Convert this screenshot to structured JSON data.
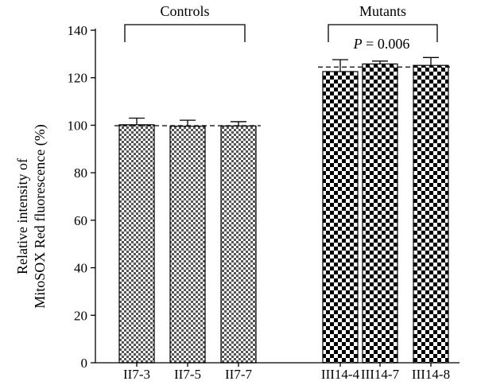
{
  "chart_data": {
    "type": "bar",
    "categories": [
      "II7-3",
      "II7-5",
      "II7-7",
      "III14-4",
      "III14-7",
      "III14-8"
    ],
    "values": [
      100.2,
      99.6,
      99.7,
      122.6,
      125.8,
      125.2
    ],
    "errors": [
      2.8,
      2.5,
      1.8,
      5.0,
      1.2,
      3.3
    ],
    "ylabel_lines": [
      "Relative intensity of",
      "MitoSOX Red fluorescence (%)"
    ],
    "ylim": [
      0,
      140
    ],
    "yticks": [
      0,
      20,
      40,
      60,
      80,
      100,
      120,
      140
    ],
    "groups": [
      {
        "label": "Controls",
        "members": [
          0,
          1,
          2
        ],
        "mean_line": 99.8
      },
      {
        "label": "Mutants",
        "members": [
          3,
          4,
          5
        ],
        "mean_line": 124.5
      }
    ],
    "annotation": {
      "p_symbol": "P",
      "p_text": " = 0.006"
    },
    "colors": {
      "control_check": "#555555",
      "mutant_check": "#000000",
      "background": "#ffffff"
    }
  }
}
